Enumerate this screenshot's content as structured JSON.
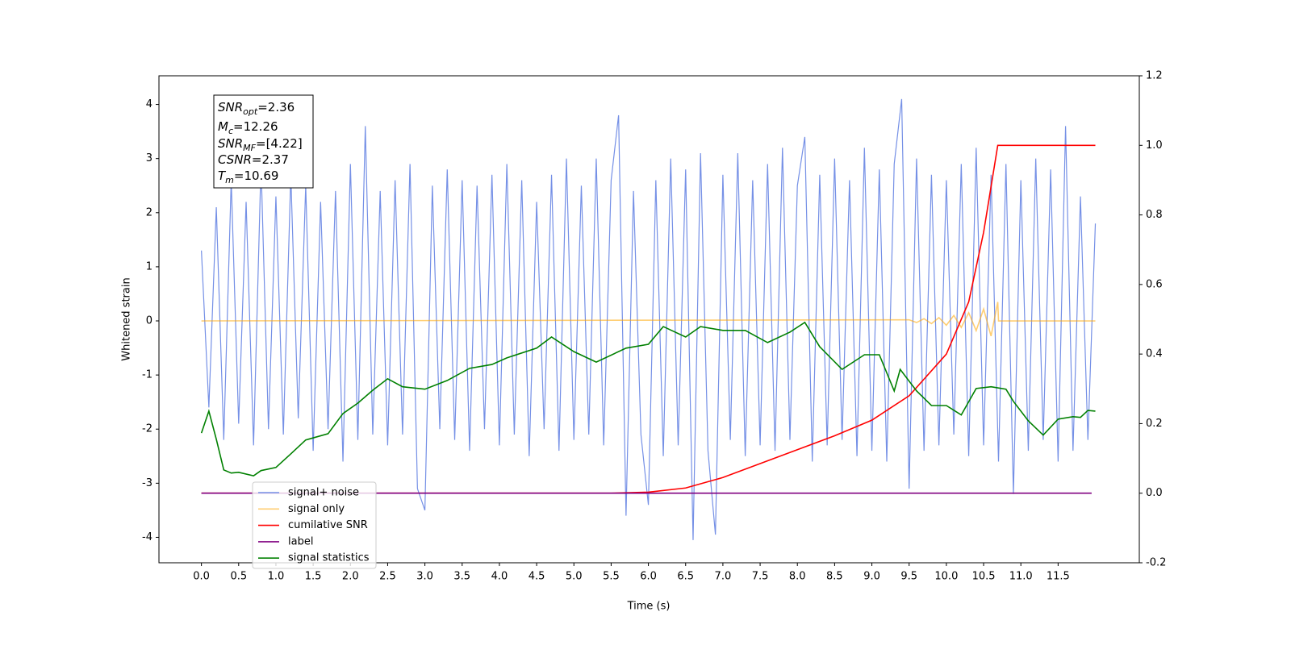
{
  "chart_data": {
    "type": "line",
    "xlabel": "Time (s)",
    "ylabel": "Whitened strain",
    "xlim": [
      -0.57,
      12.59
    ],
    "ylim": [
      -4.47,
      4.53
    ],
    "y2lim": [
      -0.2,
      1.2
    ],
    "xticks": [
      {
        "value": 0,
        "label": "0.0"
      },
      0.5,
      {
        "value": 1,
        "label": "1.0"
      },
      1.5,
      {
        "value": 2,
        "label": "2.0"
      },
      2.5,
      {
        "value": 3,
        "label": "3.0"
      },
      3.5,
      {
        "value": 4,
        "label": "4.0"
      },
      4.5,
      {
        "value": 5,
        "label": "5.0"
      },
      5.5,
      {
        "value": 6,
        "label": "6.0"
      },
      6.5,
      {
        "value": 7,
        "label": "7.0"
      },
      7.5,
      {
        "value": 8,
        "label": "8.0"
      },
      8.5,
      {
        "value": 9,
        "label": "9.0"
      },
      9.5,
      {
        "value": 10,
        "label": "10.0"
      },
      10.5,
      {
        "value": 11,
        "label": "11.0"
      },
      11.5
    ],
    "yticks": [
      -4,
      -3,
      -2,
      -1,
      0,
      1,
      2,
      3,
      4
    ],
    "y2ticks": [
      -0.2,
      {
        "value": 0,
        "label": "0.0"
      },
      0.2,
      0.4,
      0.6,
      0.8,
      {
        "value": 1,
        "label": "1.0"
      },
      1.2
    ],
    "legend": "lower left",
    "annotation": [
      {
        "symbol": "SNR",
        "subscript": "opt",
        "text": "=2.36"
      },
      {
        "symbol": "M",
        "subscript": "c",
        "text": "=12.26"
      },
      {
        "symbol": "SNR",
        "subscript": "MF",
        "text": "=[4.22]"
      },
      {
        "symbol": "CSNR",
        "subscript": null,
        "text": "=2.37"
      },
      {
        "symbol": "T",
        "subscript": "m",
        "text": "=10.69"
      }
    ],
    "series": [
      {
        "name": "signal+ noise",
        "color": "#7590e6",
        "x": [
          0,
          0.1,
          0.2,
          0.3,
          0.4,
          0.5,
          0.6,
          0.7,
          0.8,
          0.9,
          1,
          1.1,
          1.2,
          1.3,
          1.4,
          1.5,
          1.6,
          1.7,
          1.8,
          1.9,
          2,
          2.1,
          2.2,
          2.3,
          2.4,
          2.5,
          2.6,
          2.7,
          2.8,
          2.9,
          3,
          3.1,
          3.2,
          3.3,
          3.4,
          3.5,
          3.6,
          3.7,
          3.8,
          3.9,
          4,
          4.1,
          4.2,
          4.3,
          4.4,
          4.5,
          4.6,
          4.7,
          4.8,
          4.9,
          5,
          5.1,
          5.2,
          5.3,
          5.4,
          5.5,
          5.6,
          5.7,
          5.8,
          5.9,
          6,
          6.1,
          6.2,
          6.3,
          6.4,
          6.5,
          6.6,
          6.7,
          6.8,
          6.9,
          7,
          7.1,
          7.2,
          7.3,
          7.4,
          7.5,
          7.6,
          7.7,
          7.8,
          7.9,
          8,
          8.1,
          8.2,
          8.3,
          8.4,
          8.5,
          8.6,
          8.7,
          8.8,
          8.9,
          9,
          9.1,
          9.2,
          9.3,
          9.4,
          9.5,
          9.6,
          9.7,
          9.8,
          9.9,
          10,
          10.1,
          10.2,
          10.3,
          10.4,
          10.5,
          10.6,
          10.7,
          10.8,
          10.9,
          11,
          11.1,
          11.2,
          11.3,
          11.4,
          11.5,
          11.6,
          11.7,
          11.8,
          11.9,
          12
        ],
        "values": [
          1.3,
          -1.6,
          2.1,
          -2.2,
          2.6,
          -1.9,
          2.2,
          -2.3,
          2.9,
          -2.0,
          2.3,
          -2.1,
          2.7,
          -1.8,
          2.5,
          -2.4,
          2.2,
          -2.0,
          2.4,
          -2.6,
          2.9,
          -2.2,
          3.6,
          -2.1,
          2.4,
          -2.3,
          2.6,
          -2.1,
          2.9,
          -3.1,
          -3.5,
          2.5,
          -2.0,
          2.8,
          -2.2,
          2.6,
          -2.4,
          2.5,
          -2.0,
          2.7,
          -2.3,
          2.9,
          -2.1,
          2.6,
          -2.5,
          2.2,
          -2.0,
          2.7,
          -2.4,
          3.0,
          -2.2,
          2.5,
          -2.1,
          3.0,
          -2.3,
          2.6,
          3.8,
          -3.6,
          2.4,
          -2.1,
          -3.4,
          2.6,
          -2.5,
          3.0,
          -2.3,
          2.8,
          -4.05,
          3.1,
          -2.4,
          -3.95,
          2.7,
          -2.2,
          3.1,
          -2.5,
          2.6,
          -2.3,
          2.9,
          -2.4,
          3.2,
          -2.2,
          2.5,
          3.4,
          -2.6,
          2.7,
          -2.3,
          3.0,
          -2.2,
          2.6,
          -2.5,
          3.2,
          -2.4,
          2.8,
          -2.6,
          2.9,
          4.1,
          -3.1,
          3.0,
          -2.4,
          2.7,
          -2.3,
          2.6,
          -2.1,
          2.9,
          -2.5,
          3.2,
          -2.3,
          2.7,
          -2.6,
          2.9,
          -3.2,
          2.6,
          -2.4,
          3.0,
          -2.2,
          2.8,
          -2.6,
          3.6,
          -2.4,
          2.3,
          -2.2,
          1.8
        ]
      },
      {
        "name": "signal only",
        "color": "#ffa500",
        "x": [
          0,
          9.5,
          9.6,
          9.7,
          9.8,
          9.9,
          10,
          10.1,
          10.2,
          10.3,
          10.4,
          10.5,
          10.6,
          10.69,
          10.7,
          12
        ],
        "values": [
          0,
          0.02,
          -0.03,
          0.04,
          -0.05,
          0.06,
          -0.08,
          0.1,
          -0.12,
          0.15,
          -0.18,
          0.22,
          -0.28,
          0.35,
          0,
          0
        ]
      },
      {
        "name": "cumilative SNR",
        "color": "#ff0000",
        "axis": "y2",
        "x": [
          0,
          5.5,
          6,
          6.5,
          7,
          7.5,
          8,
          8.5,
          9,
          9.5,
          10,
          10.3,
          10.5,
          10.69,
          12
        ],
        "values": [
          0,
          0,
          0.003,
          0.015,
          0.045,
          0.085,
          0.125,
          0.165,
          0.21,
          0.28,
          0.4,
          0.55,
          0.75,
          1,
          1
        ]
      },
      {
        "name": "label",
        "color": "#800080",
        "axis": "y2",
        "x": [
          0,
          11.95
        ],
        "values": [
          0,
          0
        ]
      },
      {
        "name": "signal statistics",
        "color": "#008000",
        "axis": "y2",
        "x": [
          0,
          0.1,
          0.2,
          0.3,
          0.4,
          0.5,
          0.7,
          0.8,
          1,
          1.2,
          1.4,
          1.7,
          1.9,
          2.1,
          2.3,
          2.5,
          2.7,
          3,
          3.3,
          3.6,
          3.9,
          4.1,
          4.5,
          4.7,
          5,
          5.3,
          5.7,
          6,
          6.2,
          6.5,
          6.7,
          7,
          7.3,
          7.6,
          7.9,
          8.1,
          8.3,
          8.6,
          8.9,
          9.1,
          9.3,
          9.38,
          9.6,
          9.8,
          10,
          10.2,
          10.4,
          10.6,
          10.8,
          10.9,
          11.1,
          11.3,
          11.5,
          11.7,
          11.8,
          11.9,
          12
        ],
        "values": [
          0.173,
          0.236,
          0.155,
          0.067,
          0.058,
          0.06,
          0.05,
          0.065,
          0.074,
          0.113,
          0.153,
          0.171,
          0.229,
          0.259,
          0.296,
          0.329,
          0.306,
          0.299,
          0.324,
          0.359,
          0.37,
          0.389,
          0.417,
          0.449,
          0.407,
          0.377,
          0.417,
          0.428,
          0.479,
          0.449,
          0.479,
          0.468,
          0.468,
          0.433,
          0.463,
          0.491,
          0.421,
          0.356,
          0.398,
          0.398,
          0.294,
          0.356,
          0.294,
          0.252,
          0.252,
          0.225,
          0.301,
          0.306,
          0.299,
          0.264,
          0.208,
          0.167,
          0.213,
          0.22,
          0.218,
          0.238,
          0.236
        ]
      }
    ]
  }
}
